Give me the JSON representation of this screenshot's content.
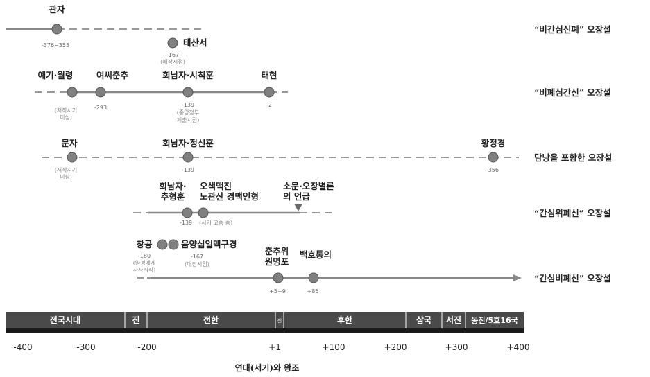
{
  "rows": {
    "r1": {
      "label": "“비간심신폐” 오장설",
      "events": [
        {
          "name": "관자",
          "year": "-376~355"
        },
        {
          "name": "태산서",
          "year": "-167",
          "note": [
            "(매장시점)"
          ]
        }
      ]
    },
    "r2": {
      "label": "“비폐심간신” 오장설",
      "events": [
        {
          "name": "예기·월령",
          "note": [
            "(저작시기",
            "미상)"
          ]
        },
        {
          "name": "여씨춘추",
          "year": "-293"
        },
        {
          "name": "회남자·시칙훈",
          "year": "-139",
          "note": [
            "(중앙정부",
            "제출시점)"
          ]
        },
        {
          "name": "태현",
          "year": "-2"
        }
      ]
    },
    "r3": {
      "label": "담낭을 포함한 오장설",
      "events": [
        {
          "name": "문자",
          "note": [
            "(저작시기",
            "미상)"
          ]
        },
        {
          "name": "회남자·정신훈",
          "year": "-139"
        },
        {
          "name": "황정경",
          "year": "+356"
        }
      ]
    },
    "r4": {
      "label": "“간심위폐신” 오장설",
      "events": [
        {
          "name": [
            "회남자·",
            "추형훈"
          ],
          "year": "-139"
        },
        {
          "name": [
            "오색맥진",
            "노관산 경맥인형"
          ],
          "note": [
            "(서기 고증 중)"
          ]
        },
        {
          "name": [
            "소문·오장별론",
            "의 언급"
          ]
        }
      ]
    },
    "r5": {
      "label": "“간심비폐신” 오장설",
      "events": [
        {
          "name": "창공",
          "year": "-180",
          "note": [
            "(양경에게",
            "사사시작)"
          ]
        },
        {
          "name": "음양십일맥구경",
          "year": "-167",
          "note": [
            "(매장시점)"
          ]
        },
        {
          "name": [
            "춘추위",
            "원명포"
          ],
          "year": "+5~9"
        },
        {
          "name": "백호통의",
          "year": "+85"
        }
      ]
    }
  },
  "eras": [
    "전국시대",
    "진",
    "전한",
    "신",
    "후한",
    "삼국",
    "서진",
    "동진/5호16국"
  ],
  "ticks": [
    "-400",
    "-300",
    "-200",
    "+1",
    "+100",
    "+200",
    "+300",
    "+400"
  ],
  "axis_title": "연대(서기)와 왕조"
}
